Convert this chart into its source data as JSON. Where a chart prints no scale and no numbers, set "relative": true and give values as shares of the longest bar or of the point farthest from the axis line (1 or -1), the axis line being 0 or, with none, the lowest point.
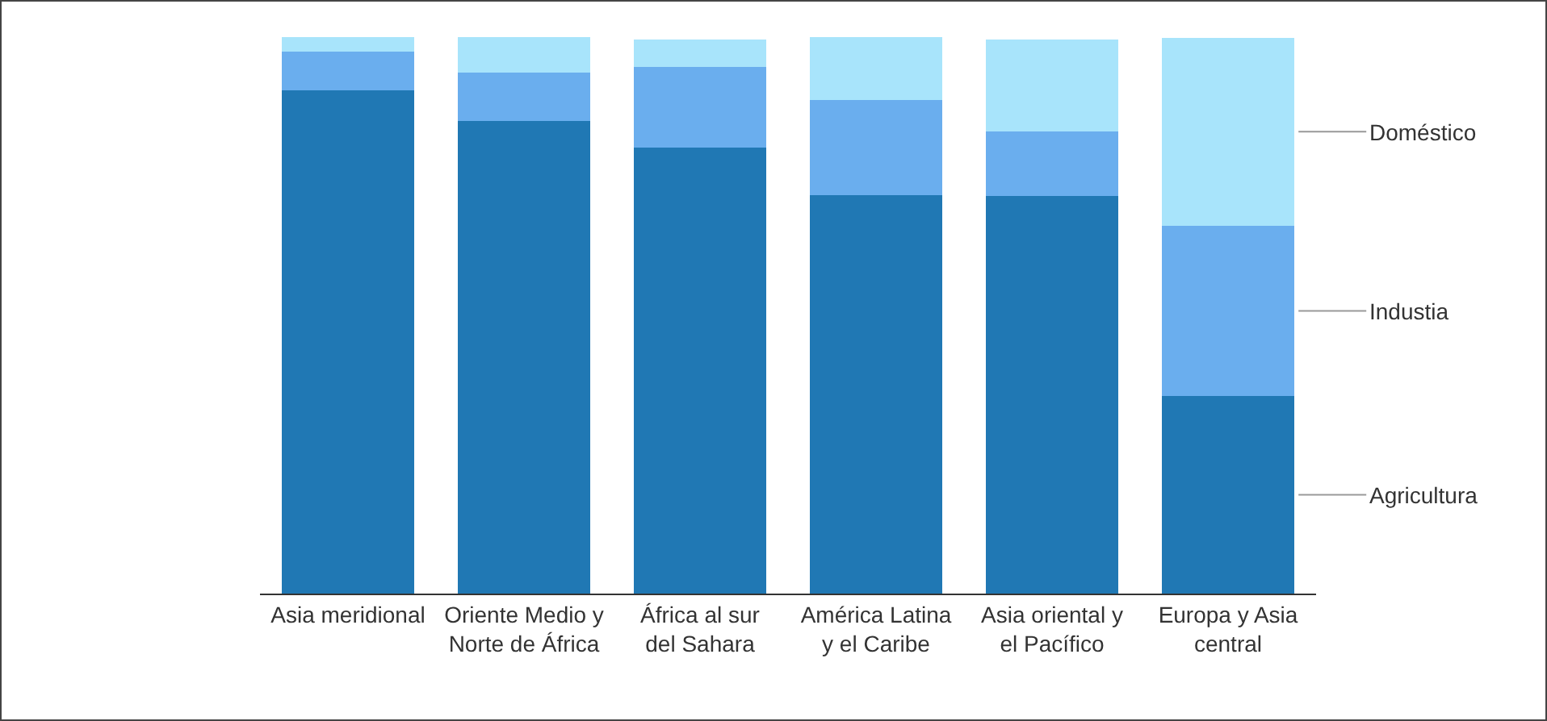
{
  "chart_data": {
    "type": "bar",
    "stacked": true,
    "relative": true,
    "categories": [
      "Asia meridional",
      "Oriente Medio y Norte de África",
      "África al sur del Sahara",
      "América Latina y el Caribe",
      "Asia oriental y el Pacífico",
      "Europa y Asia central"
    ],
    "series": [
      {
        "name": "Agricultura",
        "color": "#2078b4",
        "values": [
          0.905,
          0.849,
          0.801,
          0.716,
          0.714,
          0.355
        ]
      },
      {
        "name": "Industia",
        "color": "#6aaeee",
        "values": [
          0.069,
          0.087,
          0.145,
          0.171,
          0.116,
          0.306
        ]
      },
      {
        "name": "Doméstico",
        "color": "#a8e4fb",
        "values": [
          0.026,
          0.064,
          0.049,
          0.113,
          0.165,
          0.338
        ]
      }
    ]
  }
}
